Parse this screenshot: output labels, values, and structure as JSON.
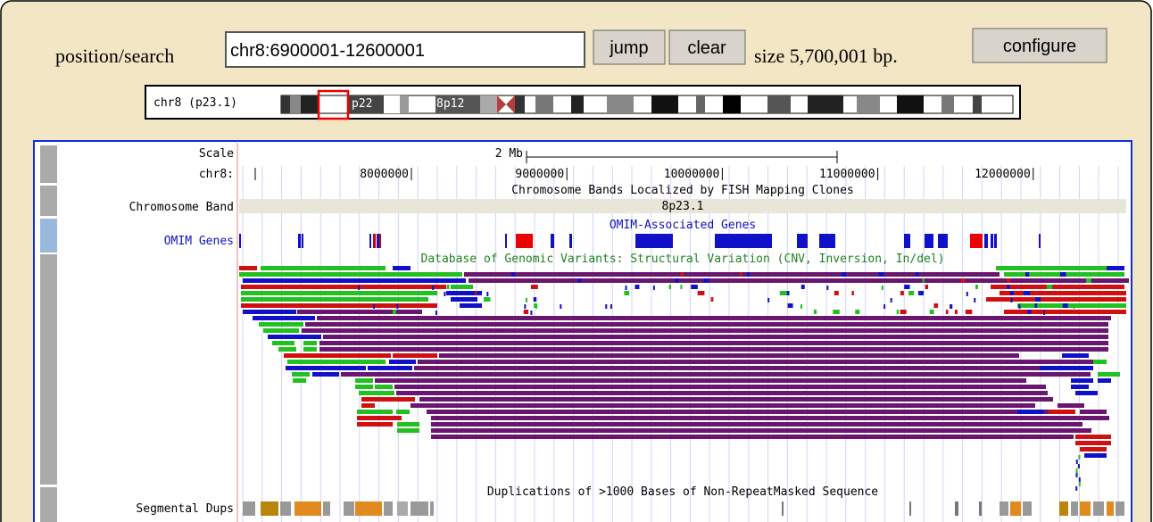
{
  "search": {
    "label": "position/search",
    "value": "chr8:6900001-12600001",
    "buttons": [
      "jump",
      "clear"
    ],
    "size": "size 5,700,001 bp.",
    "configure": "configure"
  },
  "ideogram": {
    "label": "chr8 (p23.1)",
    "bands": [
      "p22",
      "8p12"
    ]
  },
  "tracks": {
    "scale": {
      "label": "Scale",
      "bar": "2 Mb"
    },
    "position": {
      "label": "chr8:",
      "ticks": [
        "8000000",
        "9000000",
        "10000000",
        "11000000",
        "12000000"
      ]
    },
    "band": {
      "label": "Chromosome Band",
      "title": "Chromosome Bands Localized by FISH Mapping Clones",
      "name": "8p23.1"
    },
    "omim": {
      "label": "OMIM Genes",
      "title": "OMIM-Associated Genes"
    },
    "dgv": {
      "title": "Database of Genomic Variants: Structural Variation (CNV, Inversion, In/del)"
    },
    "segdups": {
      "label": "Segmental Dups",
      "title": "Duplications of >1000 Bases of Non-RepeatMasked Sequence"
    }
  }
}
